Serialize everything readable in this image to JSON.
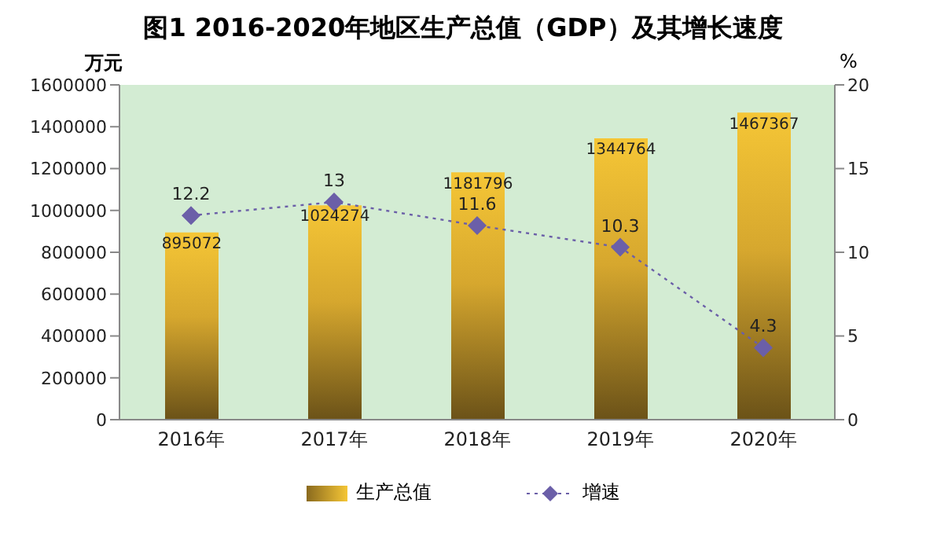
{
  "chart_data": {
    "type": "bar",
    "title": "图1  2016-2020年地区生产总值（GDP）及其增长速度",
    "categories": [
      "2016年",
      "2017年",
      "2018年",
      "2019年",
      "2020年"
    ],
    "series": [
      {
        "name": "生产总值",
        "color": "#f5c636",
        "values": [
          895072,
          1024274,
          1181796,
          1344764,
          1467367
        ]
      },
      {
        "name": "增速",
        "type": "line",
        "axis": "y2",
        "color": "#6b5fa8",
        "values": [
          12.2,
          13,
          11.6,
          10.3,
          4.3
        ],
        "marker": "diamond",
        "line_style": "dotted"
      }
    ],
    "ylabel": "万元",
    "y2label": "%",
    "ylim": [
      0,
      1600000
    ],
    "yticks": [
      0,
      200000,
      400000,
      600000,
      800000,
      1000000,
      1200000,
      1400000,
      1600000
    ],
    "y2lim": [
      0,
      20
    ],
    "y2ticks": [
      0,
      5,
      10,
      15,
      20
    ],
    "data_labels": true,
    "legend": "bottom"
  }
}
